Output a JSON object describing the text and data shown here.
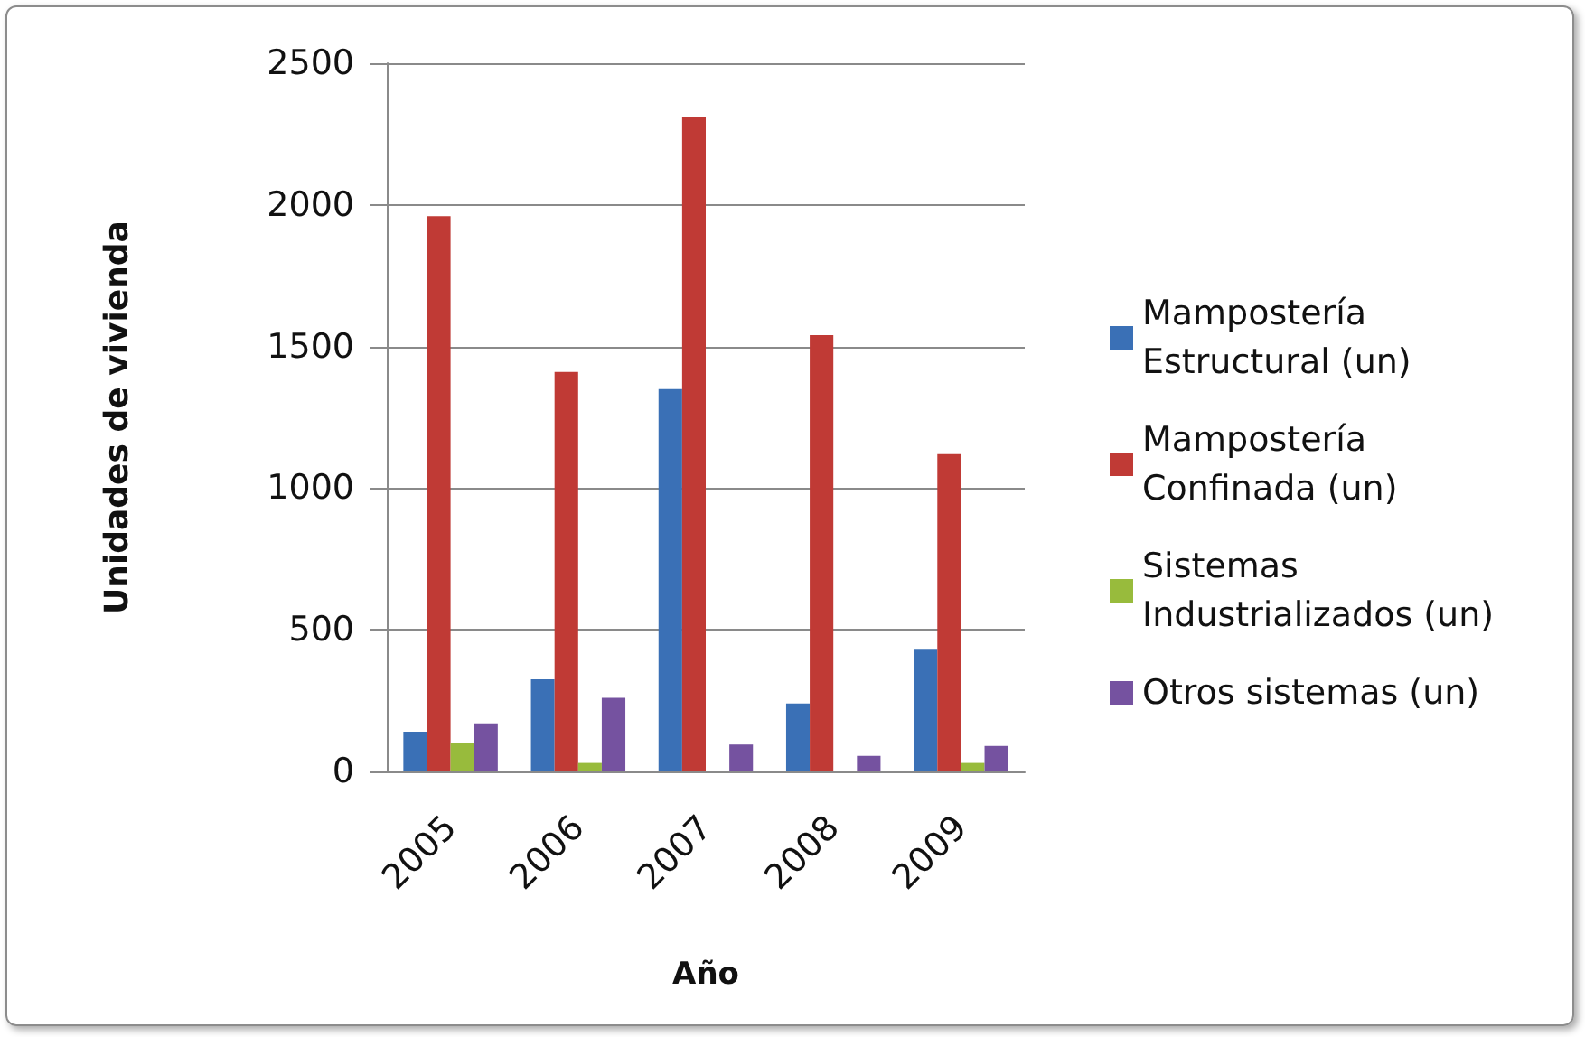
{
  "chart_data": {
    "type": "bar",
    "xlabel": "Año",
    "ylabel": "Unidades de vivienda",
    "categories": [
      "2005",
      "2006",
      "2007",
      "2008",
      "2009"
    ],
    "series": [
      {
        "name": "Mampostería Estructural (un)",
        "color": "#3a70b6",
        "values": [
          140,
          325,
          1350,
          240,
          430
        ]
      },
      {
        "name": "Mampostería Confinada (un)",
        "color": "#c03a35",
        "values": [
          1960,
          1410,
          2310,
          1540,
          1120
        ]
      },
      {
        "name": "Sistemas Industrializados (un)",
        "color": "#98bb3c",
        "values": [
          100,
          30,
          null,
          null,
          30
        ]
      },
      {
        "name": "Otros sistemas (un)",
        "color": "#7552a0",
        "values": [
          170,
          260,
          95,
          55,
          90
        ]
      }
    ],
    "ylim": [
      0,
      2500
    ],
    "yticks": [
      0,
      500,
      1000,
      1500,
      2000,
      2500
    ],
    "grid": "y",
    "legend": "right"
  }
}
